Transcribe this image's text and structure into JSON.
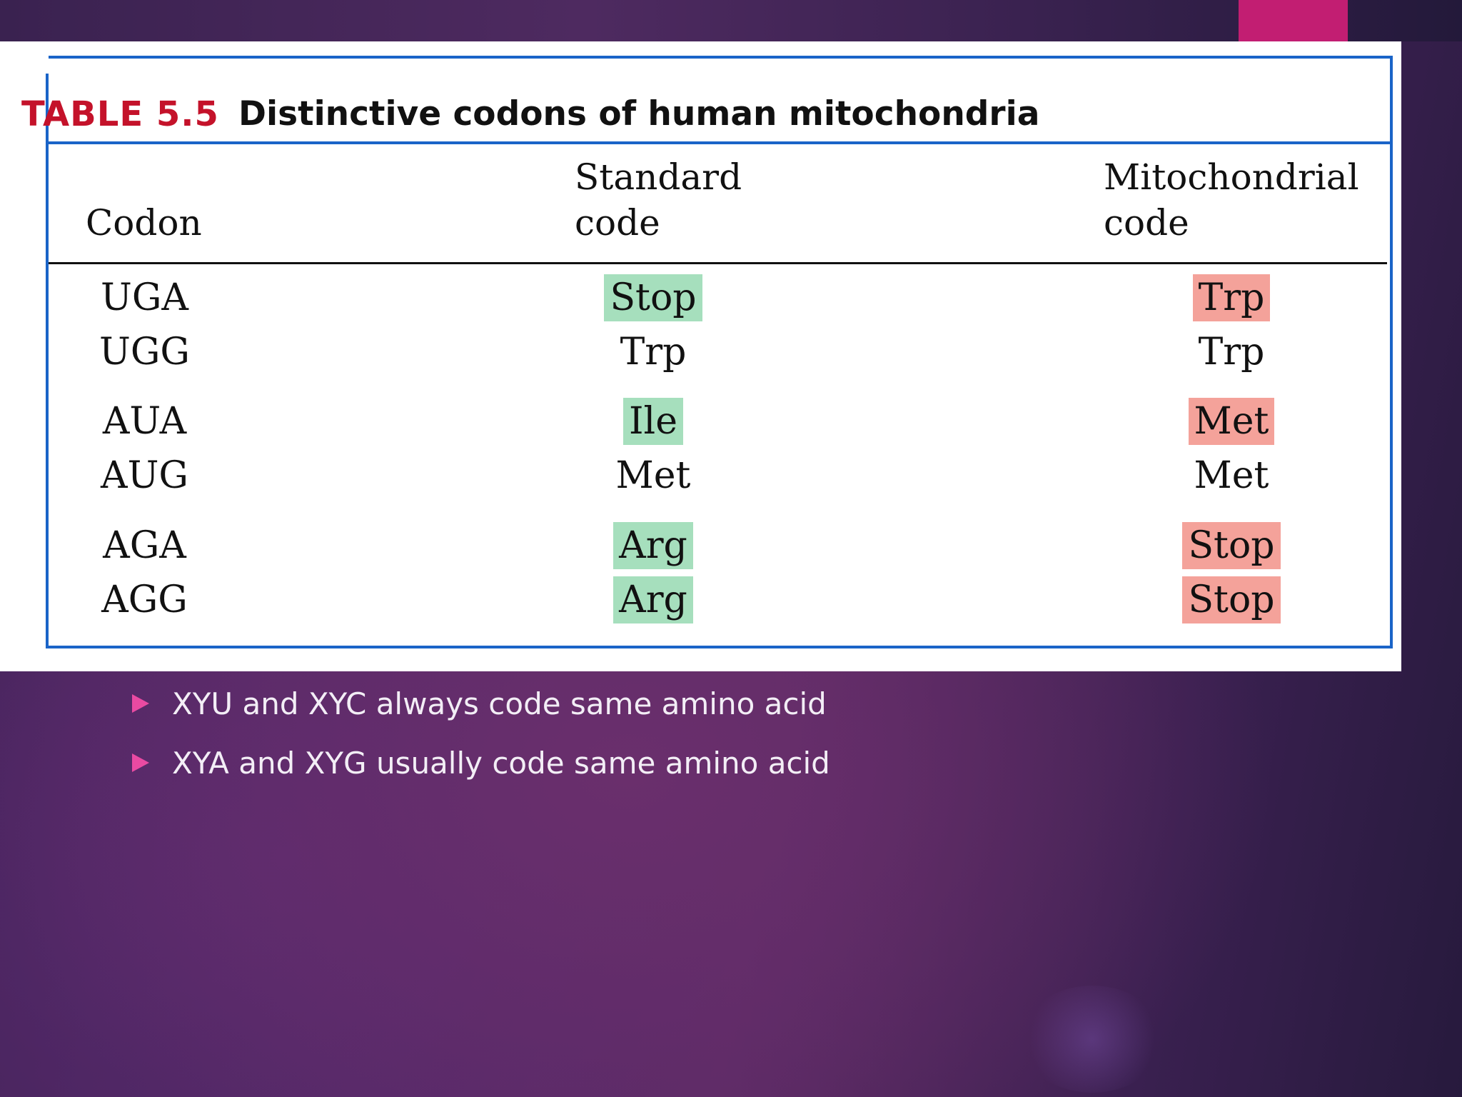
{
  "colors": {
    "accent": "#c21e72",
    "bullet": "#e94aa2",
    "table_border": "#1a64c8",
    "caption_number": "#c4122a",
    "highlight_standard": "#a6dfbd",
    "highlight_mito": "#f4a29a"
  },
  "table": {
    "number": "TABLE 5.5",
    "title": "Distinctive codons of human mitochondria",
    "headers": {
      "codon": "Codon",
      "standard_line1": "Standard",
      "standard_line2": "code",
      "mito_line1": "Mitochondrial",
      "mito_line2": "code"
    },
    "rows": [
      {
        "codon": "UGA",
        "standard": "Stop",
        "mito": "Trp",
        "highlighted": true
      },
      {
        "codon": "UGG",
        "standard": "Trp",
        "mito": "Trp",
        "highlighted": false
      },
      {
        "codon": "AUA",
        "standard": "Ile",
        "mito": "Met",
        "highlighted": true
      },
      {
        "codon": "AUG",
        "standard": "Met",
        "mito": "Met",
        "highlighted": false
      },
      {
        "codon": "AGA",
        "standard": "Arg",
        "mito": "Stop",
        "highlighted": true
      },
      {
        "codon": "AGG",
        "standard": "Arg",
        "mito": "Stop",
        "highlighted": true
      }
    ]
  },
  "bullets": [
    "XYU and XYC always code same amino acid",
    "XYA and XYG usually code same amino acid"
  ]
}
